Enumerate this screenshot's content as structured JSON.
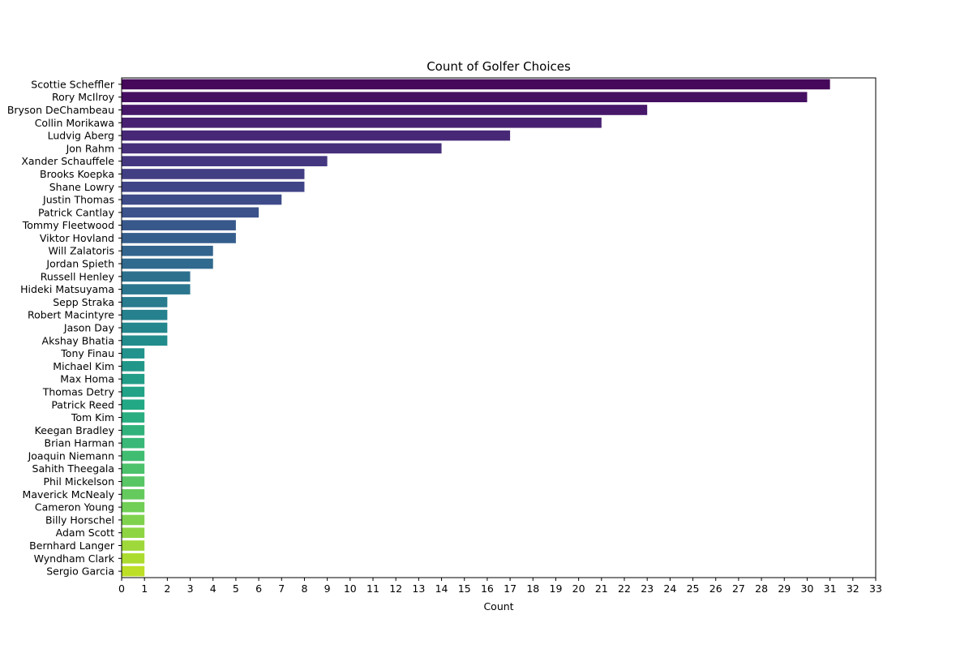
{
  "chart_data": {
    "type": "bar",
    "orientation": "horizontal",
    "title": "Count of Golfer Choices",
    "xlabel": "Count",
    "ylabel": "",
    "xlim": [
      0,
      33
    ],
    "xticks": [
      "0",
      "1",
      "2",
      "3",
      "4",
      "5",
      "6",
      "7",
      "8",
      "9",
      "10",
      "11",
      "12",
      "13",
      "14",
      "15",
      "16",
      "17",
      "18",
      "19",
      "20",
      "21",
      "22",
      "23",
      "24",
      "25",
      "26",
      "27",
      "28",
      "29",
      "30",
      "31",
      "32",
      "33"
    ],
    "grid": false,
    "palette": "viridis",
    "categories": [
      "Scottie Scheffler",
      "Rory McIlroy",
      "Bryson DeChambeau",
      "Collin Morikawa",
      "Ludvig Aberg",
      "Jon Rahm",
      "Xander Schauffele",
      "Brooks Koepka",
      "Shane Lowry",
      "Justin Thomas",
      "Patrick Cantlay",
      "Tommy Fleetwood",
      "Viktor Hovland",
      "Will Zalatoris",
      "Jordan Spieth",
      "Russell Henley",
      "Hideki Matsuyama",
      "Sepp Straka",
      "Robert Macintyre",
      "Jason Day",
      "Akshay Bhatia",
      "Tony Finau",
      "Michael Kim",
      "Max Homa",
      "Thomas Detry",
      "Patrick Reed",
      "Tom Kim",
      "Keegan Bradley",
      "Brian Harman",
      "Joaquin Niemann",
      "Sahith Theegala",
      "Phil Mickelson",
      "Maverick McNealy",
      "Cameron Young",
      "Billy Horschel",
      "Adam Scott",
      "Bernhard Langer",
      "Wyndham Clark",
      "Sergio Garcia"
    ],
    "values": [
      31,
      30,
      23,
      21,
      17,
      14,
      9,
      8,
      8,
      7,
      6,
      5,
      5,
      4,
      4,
      3,
      3,
      2,
      2,
      2,
      2,
      1,
      1,
      1,
      1,
      1,
      1,
      1,
      1,
      1,
      1,
      1,
      1,
      1,
      1,
      1,
      1,
      1,
      1
    ]
  }
}
